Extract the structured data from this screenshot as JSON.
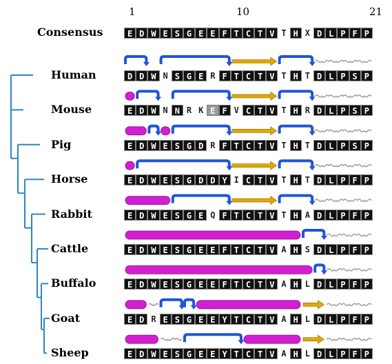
{
  "position_labels": [
    "1",
    "10",
    "21"
  ],
  "consensus": {
    "label": "Consensus",
    "residues": [
      "E",
      "D",
      "W",
      "E",
      "S",
      "G",
      "E",
      "E",
      "F",
      "T",
      "C",
      "T",
      "V",
      "T",
      "H",
      "X",
      "D",
      "L",
      "P",
      "F",
      "P"
    ],
    "styles": [
      "c",
      "c",
      "c",
      "c",
      "c",
      "c",
      "c",
      "c",
      "c",
      "c",
      "c",
      "c",
      "c",
      "n",
      "c",
      "n",
      "c",
      "c",
      "c",
      "c",
      "c"
    ]
  },
  "rows": [
    {
      "label": "Human",
      "residues": [
        "D",
        "D",
        "W",
        "N",
        "S",
        "G",
        "E",
        "R",
        "F",
        "T",
        "C",
        "T",
        "V",
        "T",
        "H",
        "T",
        "D",
        "L",
        "P",
        "S",
        "P"
      ],
      "styles": [
        "c",
        "c",
        "c",
        "n",
        "c",
        "c",
        "c",
        "n",
        "c",
        "c",
        "c",
        "c",
        "c",
        "n",
        "c",
        "n",
        "c",
        "c",
        "c",
        "c",
        "c"
      ],
      "secondary": [
        {
          "type": "turn",
          "from": 0,
          "to": 2
        },
        {
          "type": "turn",
          "from": 3,
          "to": 9
        },
        {
          "type": "strand",
          "from": 9,
          "to": 13
        },
        {
          "type": "turn",
          "from": 13,
          "to": 16
        },
        {
          "type": "coil",
          "from": 16,
          "to": 21
        }
      ]
    },
    {
      "label": "Mouse",
      "residues": [
        "E",
        "D",
        "W",
        "N",
        "N",
        "R",
        "K",
        "E",
        "F",
        "V",
        "C",
        "T",
        "V",
        "T",
        "H",
        "R",
        "D",
        "L",
        "P",
        "S",
        "P"
      ],
      "styles": [
        "c",
        "c",
        "c",
        "n",
        "c",
        "n",
        "n",
        "p",
        "c",
        "n",
        "c",
        "c",
        "c",
        "n",
        "c",
        "n",
        "c",
        "c",
        "c",
        "c",
        "c"
      ],
      "secondary": [
        {
          "type": "helix",
          "from": 0,
          "to": 1
        },
        {
          "type": "turn",
          "from": 1,
          "to": 3
        },
        {
          "type": "turn",
          "from": 4,
          "to": 9
        },
        {
          "type": "strand",
          "from": 9,
          "to": 13
        },
        {
          "type": "turn",
          "from": 13,
          "to": 16
        },
        {
          "type": "coil",
          "from": 16,
          "to": 21
        }
      ]
    },
    {
      "label": "Pig",
      "residues": [
        "E",
        "D",
        "W",
        "E",
        "S",
        "G",
        "D",
        "R",
        "F",
        "T",
        "C",
        "T",
        "V",
        "T",
        "H",
        "T",
        "D",
        "L",
        "P",
        "S",
        "P"
      ],
      "styles": [
        "c",
        "c",
        "c",
        "c",
        "c",
        "c",
        "c",
        "n",
        "c",
        "c",
        "c",
        "c",
        "c",
        "n",
        "c",
        "n",
        "c",
        "c",
        "c",
        "c",
        "c"
      ],
      "secondary": [
        {
          "type": "helix",
          "from": 0,
          "to": 2
        },
        {
          "type": "turn",
          "from": 2,
          "to": 3
        },
        {
          "type": "helix",
          "from": 3,
          "to": 4
        },
        {
          "type": "turn",
          "from": 4,
          "to": 9
        },
        {
          "type": "strand",
          "from": 9,
          "to": 13
        },
        {
          "type": "turn",
          "from": 13,
          "to": 16
        },
        {
          "type": "coil",
          "from": 16,
          "to": 21
        }
      ]
    },
    {
      "label": "Horse",
      "residues": [
        "E",
        "D",
        "W",
        "E",
        "S",
        "G",
        "D",
        "D",
        "Y",
        "I",
        "C",
        "T",
        "V",
        "T",
        "H",
        "T",
        "D",
        "L",
        "P",
        "F",
        "P"
      ],
      "styles": [
        "c",
        "c",
        "c",
        "c",
        "c",
        "c",
        "c",
        "c",
        "c",
        "n",
        "c",
        "c",
        "c",
        "n",
        "c",
        "n",
        "c",
        "c",
        "c",
        "c",
        "c"
      ],
      "secondary": [
        {
          "type": "helix",
          "from": 0,
          "to": 1
        },
        {
          "type": "turn",
          "from": 1,
          "to": 9
        },
        {
          "type": "strand",
          "from": 9,
          "to": 13
        },
        {
          "type": "turn",
          "from": 13,
          "to": 16
        },
        {
          "type": "coil",
          "from": 16,
          "to": 21
        }
      ]
    },
    {
      "label": "Rabbit",
      "residues": [
        "E",
        "D",
        "W",
        "E",
        "S",
        "G",
        "E",
        "Q",
        "F",
        "T",
        "C",
        "T",
        "V",
        "T",
        "H",
        "A",
        "D",
        "L",
        "P",
        "F",
        "P"
      ],
      "styles": [
        "c",
        "c",
        "c",
        "c",
        "c",
        "c",
        "c",
        "n",
        "c",
        "c",
        "c",
        "c",
        "c",
        "n",
        "c",
        "n",
        "c",
        "c",
        "c",
        "c",
        "c"
      ],
      "secondary": [
        {
          "type": "helix",
          "from": 0,
          "to": 4
        },
        {
          "type": "turn",
          "from": 4,
          "to": 9
        },
        {
          "type": "strand",
          "from": 9,
          "to": 13
        },
        {
          "type": "turn",
          "from": 13,
          "to": 16
        },
        {
          "type": "coil",
          "from": 16,
          "to": 21
        }
      ]
    },
    {
      "label": "Cattle",
      "residues": [
        "E",
        "D",
        "W",
        "E",
        "S",
        "G",
        "E",
        "E",
        "F",
        "T",
        "C",
        "T",
        "V",
        "A",
        "H",
        "S",
        "D",
        "L",
        "P",
        "F",
        "P"
      ],
      "styles": [
        "c",
        "c",
        "c",
        "c",
        "c",
        "c",
        "c",
        "c",
        "c",
        "c",
        "c",
        "c",
        "c",
        "n",
        "c",
        "n",
        "c",
        "c",
        "c",
        "c",
        "c"
      ],
      "secondary": [
        {
          "type": "helix",
          "from": 0,
          "to": 15
        },
        {
          "type": "turn",
          "from": 15,
          "to": 17
        },
        {
          "type": "coil",
          "from": 17,
          "to": 21
        }
      ]
    },
    {
      "label": "Buffalo",
      "residues": [
        "E",
        "D",
        "W",
        "E",
        "S",
        "G",
        "E",
        "E",
        "F",
        "T",
        "C",
        "T",
        "V",
        "A",
        "H",
        "L",
        "D",
        "L",
        "P",
        "F",
        "P"
      ],
      "styles": [
        "c",
        "c",
        "c",
        "c",
        "c",
        "c",
        "c",
        "c",
        "c",
        "c",
        "c",
        "c",
        "c",
        "n",
        "c",
        "n",
        "c",
        "c",
        "c",
        "c",
        "c"
      ],
      "secondary": [
        {
          "type": "helix",
          "from": 0,
          "to": 16
        },
        {
          "type": "turn",
          "from": 16,
          "to": 17
        },
        {
          "type": "coil",
          "from": 17,
          "to": 21
        }
      ]
    },
    {
      "label": "Goat",
      "residues": [
        "E",
        "D",
        "R",
        "E",
        "S",
        "G",
        "E",
        "E",
        "Y",
        "T",
        "C",
        "T",
        "V",
        "A",
        "H",
        "L",
        "D",
        "L",
        "P",
        "F",
        "P"
      ],
      "styles": [
        "c",
        "c",
        "n",
        "c",
        "c",
        "c",
        "c",
        "c",
        "c",
        "c",
        "c",
        "c",
        "c",
        "n",
        "c",
        "n",
        "c",
        "c",
        "c",
        "c",
        "c"
      ],
      "secondary": [
        {
          "type": "helix",
          "from": 0,
          "to": 2
        },
        {
          "type": "coil",
          "from": 2,
          "to": 3
        },
        {
          "type": "turn",
          "from": 3,
          "to": 5
        },
        {
          "type": "turn",
          "from": 5,
          "to": 6
        },
        {
          "type": "helix",
          "from": 6,
          "to": 15
        },
        {
          "type": "strand",
          "from": 15,
          "to": 17
        },
        {
          "type": "coil",
          "from": 17,
          "to": 21
        }
      ]
    },
    {
      "label": "Sheep",
      "residues": [
        "E",
        "D",
        "W",
        "E",
        "S",
        "G",
        "E",
        "E",
        "Y",
        "T",
        "C",
        "T",
        "V",
        "A",
        "H",
        "L",
        "D",
        "L",
        "P",
        "F",
        "P"
      ],
      "styles": [
        "c",
        "c",
        "c",
        "c",
        "c",
        "c",
        "c",
        "c",
        "c",
        "c",
        "c",
        "c",
        "c",
        "n",
        "c",
        "n",
        "c",
        "c",
        "c",
        "c",
        "c"
      ],
      "secondary": [
        {
          "type": "helix",
          "from": 0,
          "to": 3
        },
        {
          "type": "coil",
          "from": 3,
          "to": 5
        },
        {
          "type": "turn",
          "from": 5,
          "to": 10
        },
        {
          "type": "helix",
          "from": 10,
          "to": 15
        },
        {
          "type": "strand",
          "from": 15,
          "to": 17
        },
        {
          "type": "coil",
          "from": 17,
          "to": 21
        }
      ]
    }
  ],
  "colors": {
    "helix": "#d21fd2",
    "strand": "#e0a800",
    "turn": "#1f55d6",
    "coil": "#a0a0a0",
    "tree": "#2a86c8",
    "conserved_bg": "#111111",
    "partial_bg": "#9a9a9a"
  }
}
